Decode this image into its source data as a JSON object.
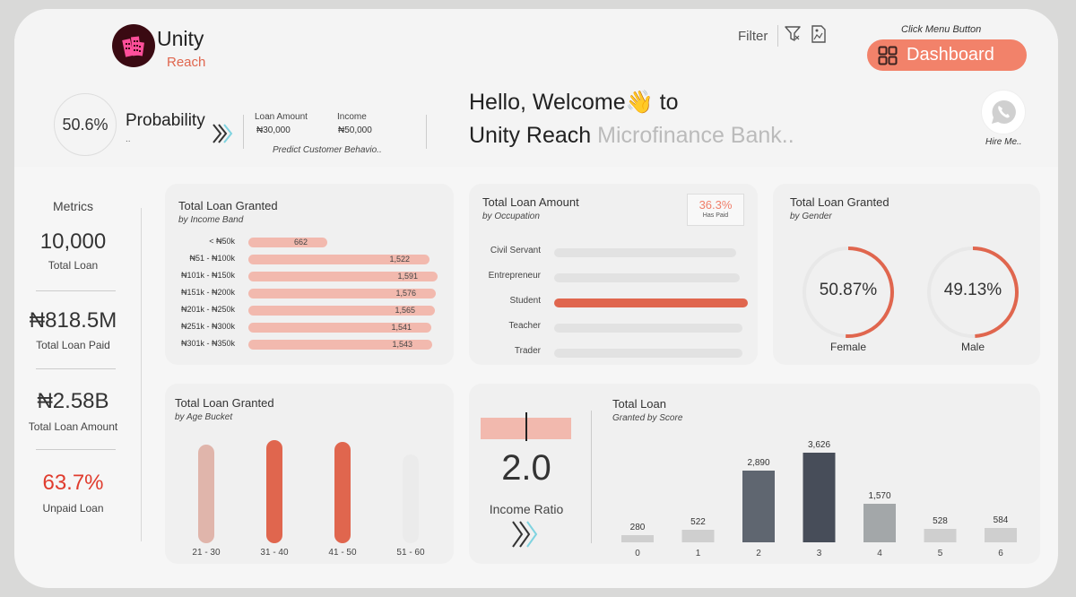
{
  "brand": {
    "name": "Unity",
    "sub": "Reach"
  },
  "toolbar": {
    "filter_label": "Filter",
    "menu_hint": "Click Menu Button",
    "dashboard_label": "Dashboard"
  },
  "probability": {
    "value": "50.6%",
    "label": "Probability",
    "sub": "..",
    "loan_amount_label": "Loan Amount",
    "loan_amount_value": "₦30,000",
    "income_label": "Income",
    "income_value": "₦50,000",
    "predict_label": "Predict Customer Behavio.."
  },
  "welcome": {
    "line1": "Hello, Welcome👋 to",
    "line2_main": "Unity Reach",
    "line2_grey": "Microfinance Bank.."
  },
  "hire": {
    "label": "Hire Me..",
    "icon": "whatsapp-icon"
  },
  "metrics": {
    "title": "Metrics",
    "items": [
      {
        "value": "10,000",
        "label": "Total Loan",
        "color": "#333333"
      },
      {
        "value": "₦818.5M",
        "label": "Total Loan Paid",
        "color": "#333333"
      },
      {
        "value": "₦2.58B",
        "label": "Total Loan Amount",
        "color": "#333333"
      },
      {
        "value": "63.7%",
        "label": "Unpaid Loan",
        "color": "#e03c2e"
      }
    ]
  },
  "income_band": {
    "title": "Total Loan Granted",
    "sub": "by Income Band",
    "rows": [
      {
        "label": "< ₦50k",
        "value": "662",
        "count": 662
      },
      {
        "label": "₦51 - ₦100k",
        "value": "1,522",
        "count": 1522
      },
      {
        "label": "₦101k - ₦150k",
        "value": "1,591",
        "count": 1591
      },
      {
        "label": "₦151k - ₦200k",
        "value": "1,576",
        "count": 1576
      },
      {
        "label": "₦201k - ₦250k",
        "value": "1,565",
        "count": 1565
      },
      {
        "label": "₦251k - ₦300k",
        "value": "1,541",
        "count": 1541
      },
      {
        "label": "₦301k - ₦350k",
        "value": "1,543",
        "count": 1543
      }
    ]
  },
  "occupation": {
    "title": "Total Loan Amount",
    "sub": "by Occupation",
    "paid_value": "36.3%",
    "paid_label": "Has Paid",
    "rows": [
      {
        "label": "Civil Servant",
        "share": 0.94,
        "highlight": false
      },
      {
        "label": "Entrepreneur",
        "share": 0.96,
        "highlight": false
      },
      {
        "label": "Student",
        "share": 1.0,
        "highlight": true
      },
      {
        "label": "Teacher",
        "share": 0.97,
        "highlight": false
      },
      {
        "label": "Trader",
        "share": 0.97,
        "highlight": false
      }
    ]
  },
  "gender": {
    "title": "Total Loan Granted",
    "sub": "by Gender",
    "items": [
      {
        "label": "Female",
        "value": "50.87%",
        "pct": 50.87
      },
      {
        "label": "Male",
        "value": "49.13%",
        "pct": 49.13
      }
    ]
  },
  "age": {
    "title": "Total Loan Granted",
    "sub": "by Age Bucket",
    "items": [
      {
        "label": "21 - 30",
        "level": 0.96,
        "color": "#e0b5ab"
      },
      {
        "label": "31 - 40",
        "level": 1.0,
        "color": "#e0664e"
      },
      {
        "label": "41 - 50",
        "level": 0.98,
        "color": "#e0664e"
      },
      {
        "label": "51 - 60",
        "level": 0.86,
        "color": "#ebebeb"
      }
    ]
  },
  "income_ratio": {
    "value": "2.0",
    "label": "Income Ratio",
    "level": 0.5
  },
  "chart_data": {
    "type": "bar",
    "title": "Total Loan",
    "subtitle": "Granted by Score",
    "categories": [
      "0",
      "1",
      "2",
      "3",
      "4",
      "5",
      "6"
    ],
    "values": [
      280,
      522,
      2890,
      3626,
      1570,
      528,
      584
    ],
    "value_labels": [
      "280",
      "522",
      "2,890",
      "3,626",
      "1,570",
      "528",
      "584"
    ],
    "colors": [
      "#cfcfcf",
      "#cfcfcf",
      "#5f6670",
      "#474d59",
      "#a3a7a9",
      "#cfcfcf",
      "#cfcfcf"
    ],
    "ylim": [
      0,
      3626
    ],
    "grid": false
  }
}
